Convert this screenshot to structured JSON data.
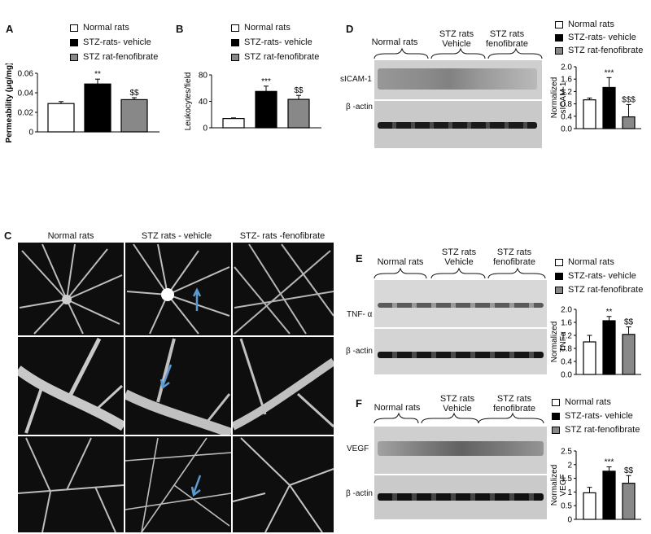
{
  "panels": {
    "A": {
      "label": "A",
      "legend": [
        "Normal rats",
        "STZ-rats- vehicle",
        "STZ rat-fenofibrate"
      ],
      "sig": [
        "",
        "**",
        "$$"
      ]
    },
    "B": {
      "label": "B",
      "legend": [
        "Normal rats",
        "STZ-rats- vehicle",
        "STZ rat-fenofibrate"
      ],
      "sig": [
        "",
        "***",
        "$$"
      ]
    },
    "C": {
      "label": "C",
      "columns": [
        "Normal rats",
        "STZ rats - vehicle",
        "STZ- rats -fenofibrate"
      ]
    },
    "D": {
      "label": "D",
      "groups": [
        "Normal rats",
        "STZ rats\nVehicle",
        "STZ rats\nfenofibrate"
      ],
      "row_labels": [
        "sICAM-1",
        "β -actin"
      ],
      "legend": [
        "Normal rats",
        "STZ-rats- vehicle",
        "STZ rat-fenofibrate"
      ],
      "sig": [
        "",
        "***",
        "$$$"
      ]
    },
    "E": {
      "label": "E",
      "groups": [
        "Normal rats",
        "STZ rats\nVehicle",
        "STZ rats\nfenofibrate"
      ],
      "row_labels": [
        "TNF- α",
        "β -actin"
      ],
      "legend": [
        "Normal rats",
        "STZ-rats- vehicle",
        "STZ rat-fenofibrate"
      ],
      "sig": [
        "",
        "**",
        "$$"
      ]
    },
    "F": {
      "label": "F",
      "groups": [
        "Normal rats",
        "STZ rats\nVehicle",
        "STZ rats\nfenofibrate"
      ],
      "row_labels": [
        "VEGF",
        "β -actin"
      ],
      "legend": [
        "Normal rats",
        "STZ-rats- vehicle",
        "STZ rat-fenofibrate"
      ],
      "sig": [
        "",
        "***",
        "$$"
      ]
    }
  },
  "colors": {
    "normal": "#ffffff",
    "vehicle": "#000000",
    "fenofibrate": "#888888",
    "arrow": "#5b9bd5"
  },
  "chart_data": [
    {
      "id": "A",
      "type": "bar",
      "categories": [
        "Normal rats",
        "STZ-rats- vehicle",
        "STZ rat-fenofibrate"
      ],
      "values": [
        0.029,
        0.049,
        0.033
      ],
      "errors": [
        0.002,
        0.005,
        0.002
      ],
      "ylabel": "Permeability (μg/mg)",
      "ylim": [
        0,
        0.06
      ],
      "yticks": [
        "0",
        "0.02",
        "0.04",
        "0.06"
      ]
    },
    {
      "id": "B",
      "type": "bar",
      "categories": [
        "Normal rats",
        "STZ-rats- vehicle",
        "STZ rat-fenofibrate"
      ],
      "values": [
        14,
        55,
        43
      ],
      "errors": [
        1,
        8,
        6
      ],
      "ylabel": "Leukocytes/field",
      "ylim": [
        0,
        80
      ],
      "yticks": [
        "0",
        "40",
        "80"
      ]
    },
    {
      "id": "D",
      "type": "bar",
      "categories": [
        "Normal rats",
        "STZ-rats- vehicle",
        "STZ rat-fenofibrate"
      ],
      "values": [
        0.93,
        1.33,
        0.38
      ],
      "errors": [
        0.06,
        0.32,
        0.4
      ],
      "ylabel": "Normalized\nsICAM-1",
      "ylim": [
        0,
        2.0
      ],
      "yticks": [
        "0.0",
        "0.4",
        "0.8",
        "1.2",
        "1.6",
        "2.0"
      ]
    },
    {
      "id": "E",
      "type": "bar",
      "categories": [
        "Normal rats",
        "STZ-rats- vehicle",
        "STZ rat-fenofibrate"
      ],
      "values": [
        1.0,
        1.65,
        1.23
      ],
      "errors": [
        0.2,
        0.13,
        0.23
      ],
      "ylabel": "Normalized\nTNFα",
      "ylim": [
        0,
        2.0
      ],
      "yticks": [
        "0.0",
        "0.4",
        "0.8",
        "1.2",
        "1.6",
        "2.0"
      ]
    },
    {
      "id": "F",
      "type": "bar",
      "categories": [
        "Normal rats",
        "STZ-rats- vehicle",
        "STZ rat-fenofibrate"
      ],
      "values": [
        0.97,
        1.76,
        1.32
      ],
      "errors": [
        0.2,
        0.16,
        0.28
      ],
      "ylabel": "Normalized\nVEGF",
      "ylim": [
        0,
        2.5
      ],
      "yticks": [
        "0",
        "0.5",
        "1",
        "1.5",
        "2",
        "2.5"
      ]
    }
  ]
}
